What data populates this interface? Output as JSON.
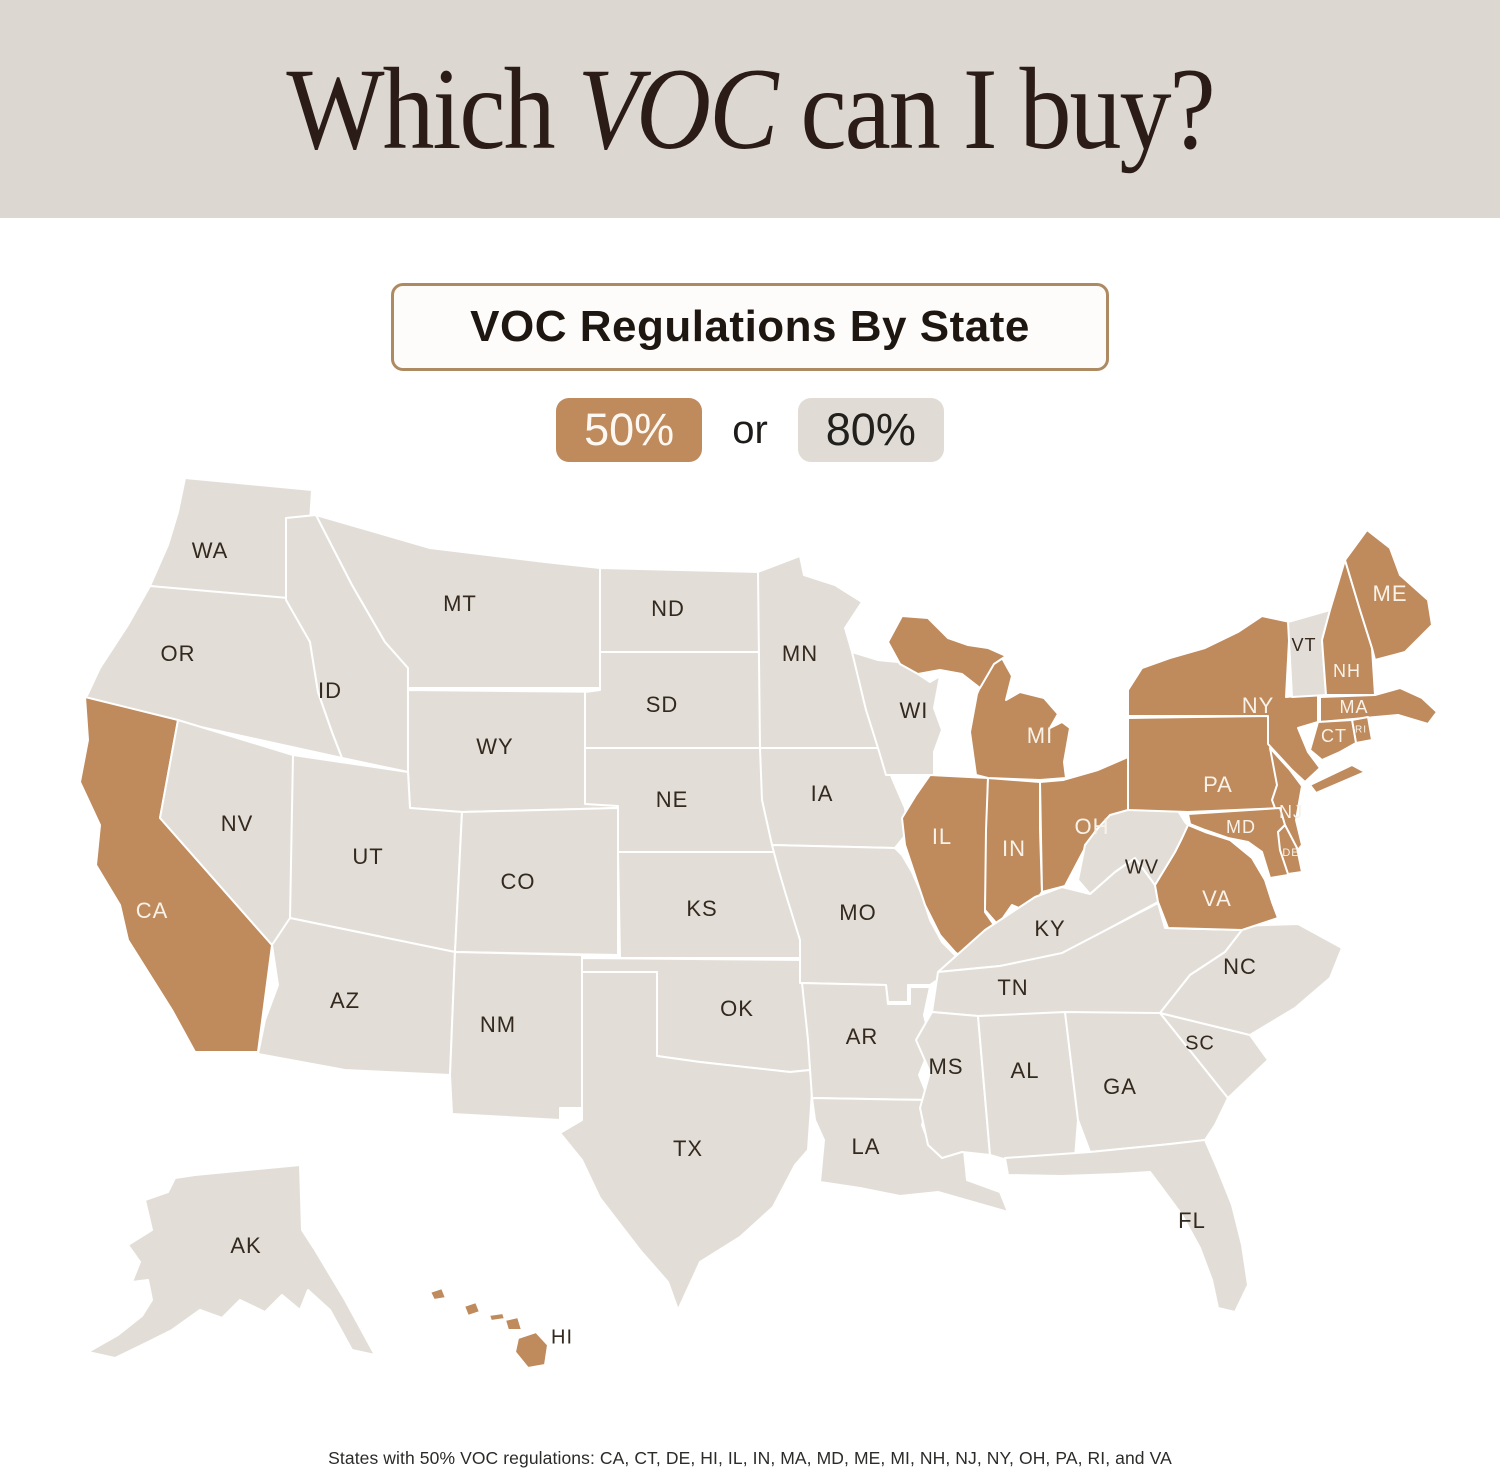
{
  "title": {
    "part1": "Which ",
    "italic": "VOC",
    "part2": " can I buy?"
  },
  "subtitle_box": "VOC Regulations By State",
  "legend": {
    "fifty": "50%",
    "or": "or",
    "eighty": "80%"
  },
  "footer": "States with 50% VOC regulations:  CA, CT, DE, HI, IL, IN, MA, MD, ME, MI, NH, NJ, NY, OH, PA, RI, and VA",
  "colors": {
    "regulated_50": "#bf8a5c",
    "standard_80": "#e2ded7",
    "header_bg": "#dcd7d1",
    "label_dark": "#33291f",
    "label_light": "#f8f2e8",
    "border": "#ffffff"
  },
  "chart_data": {
    "type": "choropleth-map",
    "title": "VOC Regulations By State",
    "legend_values": [
      "50%",
      "80%"
    ],
    "states_50_pct": [
      "CA",
      "CT",
      "DE",
      "HI",
      "IL",
      "IN",
      "MA",
      "MD",
      "ME",
      "MI",
      "NH",
      "NJ",
      "NY",
      "OH",
      "PA",
      "RI",
      "VA"
    ]
  },
  "map": {
    "states": [
      {
        "id": "WA",
        "label": "WA",
        "pct": "80"
      },
      {
        "id": "OR",
        "label": "OR",
        "pct": "80"
      },
      {
        "id": "CA",
        "label": "CA",
        "pct": "50"
      },
      {
        "id": "NV",
        "label": "NV",
        "pct": "80"
      },
      {
        "id": "ID",
        "label": "ID",
        "pct": "80"
      },
      {
        "id": "MT",
        "label": "MT",
        "pct": "80"
      },
      {
        "id": "WY",
        "label": "WY",
        "pct": "80"
      },
      {
        "id": "UT",
        "label": "UT",
        "pct": "80"
      },
      {
        "id": "AZ",
        "label": "AZ",
        "pct": "80"
      },
      {
        "id": "CO",
        "label": "CO",
        "pct": "80"
      },
      {
        "id": "NM",
        "label": "NM",
        "pct": "80"
      },
      {
        "id": "ND",
        "label": "ND",
        "pct": "80"
      },
      {
        "id": "SD",
        "label": "SD",
        "pct": "80"
      },
      {
        "id": "NE",
        "label": "NE",
        "pct": "80"
      },
      {
        "id": "KS",
        "label": "KS",
        "pct": "80"
      },
      {
        "id": "OK",
        "label": "OK",
        "pct": "80"
      },
      {
        "id": "TX",
        "label": "TX",
        "pct": "80"
      },
      {
        "id": "MN",
        "label": "MN",
        "pct": "80"
      },
      {
        "id": "IA",
        "label": "IA",
        "pct": "80"
      },
      {
        "id": "MO",
        "label": "MO",
        "pct": "80"
      },
      {
        "id": "AR",
        "label": "AR",
        "pct": "80"
      },
      {
        "id": "LA",
        "label": "LA",
        "pct": "80"
      },
      {
        "id": "WI",
        "label": "WI",
        "pct": "80"
      },
      {
        "id": "IL",
        "label": "IL",
        "pct": "50"
      },
      {
        "id": "IN",
        "label": "IN",
        "pct": "50"
      },
      {
        "id": "MI",
        "label": "MI",
        "pct": "50"
      },
      {
        "id": "OH",
        "label": "OH",
        "pct": "50"
      },
      {
        "id": "KY",
        "label": "KY",
        "pct": "80"
      },
      {
        "id": "TN",
        "label": "TN",
        "pct": "80"
      },
      {
        "id": "MS",
        "label": "MS",
        "pct": "80"
      },
      {
        "id": "AL",
        "label": "AL",
        "pct": "80"
      },
      {
        "id": "GA",
        "label": "GA",
        "pct": "80"
      },
      {
        "id": "SC",
        "label": "SC",
        "pct": "80"
      },
      {
        "id": "NC",
        "label": "NC",
        "pct": "80"
      },
      {
        "id": "FL",
        "label": "FL",
        "pct": "80"
      },
      {
        "id": "VA",
        "label": "VA",
        "pct": "50"
      },
      {
        "id": "WV",
        "label": "WV",
        "pct": "80"
      },
      {
        "id": "PA",
        "label": "PA",
        "pct": "50"
      },
      {
        "id": "NY",
        "label": "NY",
        "pct": "50"
      },
      {
        "id": "NJ",
        "label": "NJ",
        "pct": "50"
      },
      {
        "id": "MD",
        "label": "MD",
        "pct": "50"
      },
      {
        "id": "DE",
        "label": "DE",
        "pct": "50"
      },
      {
        "id": "VT",
        "label": "VT",
        "pct": "80"
      },
      {
        "id": "NH",
        "label": "NH",
        "pct": "50"
      },
      {
        "id": "ME",
        "label": "ME",
        "pct": "50"
      },
      {
        "id": "MA",
        "label": "MA",
        "pct": "50"
      },
      {
        "id": "RI",
        "label": "RI",
        "pct": "50"
      },
      {
        "id": "CT",
        "label": "CT",
        "pct": "50"
      },
      {
        "id": "AK",
        "label": "AK",
        "pct": "80"
      },
      {
        "id": "HI",
        "label": "HI",
        "pct": "50"
      }
    ]
  }
}
